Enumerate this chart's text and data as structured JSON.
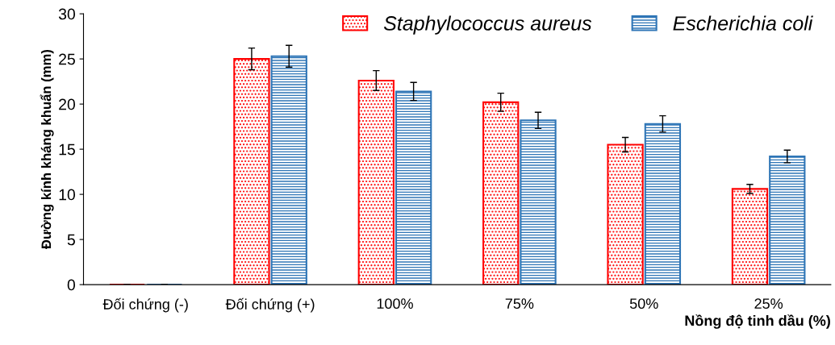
{
  "chart_data": {
    "type": "bar",
    "xlabel": "Nồng độ tinh dầu (%)",
    "ylabel": "Đường kính kháng khuẩn (mm)",
    "categories": [
      "Đối chứng (-)",
      "Đối chứng (+)",
      "100%",
      "75%",
      "50%",
      "25%"
    ],
    "series": [
      {
        "name": "Staphylococcus aureus",
        "color": "#ff0000",
        "values": [
          0,
          25.0,
          22.6,
          20.2,
          15.5,
          10.6
        ],
        "errors": [
          0,
          1.2,
          1.1,
          1.0,
          0.8,
          0.5
        ]
      },
      {
        "name": "Escherichia coli",
        "color": "#2e75b6",
        "values": [
          0,
          25.3,
          21.4,
          18.2,
          17.8,
          14.2
        ],
        "errors": [
          0,
          1.2,
          1.0,
          0.9,
          0.9,
          0.7
        ]
      }
    ],
    "ylim": [
      0,
      30
    ],
    "yticks": [
      0,
      5,
      10,
      15,
      20,
      25,
      30
    ],
    "grid": false,
    "legend": "top right"
  }
}
